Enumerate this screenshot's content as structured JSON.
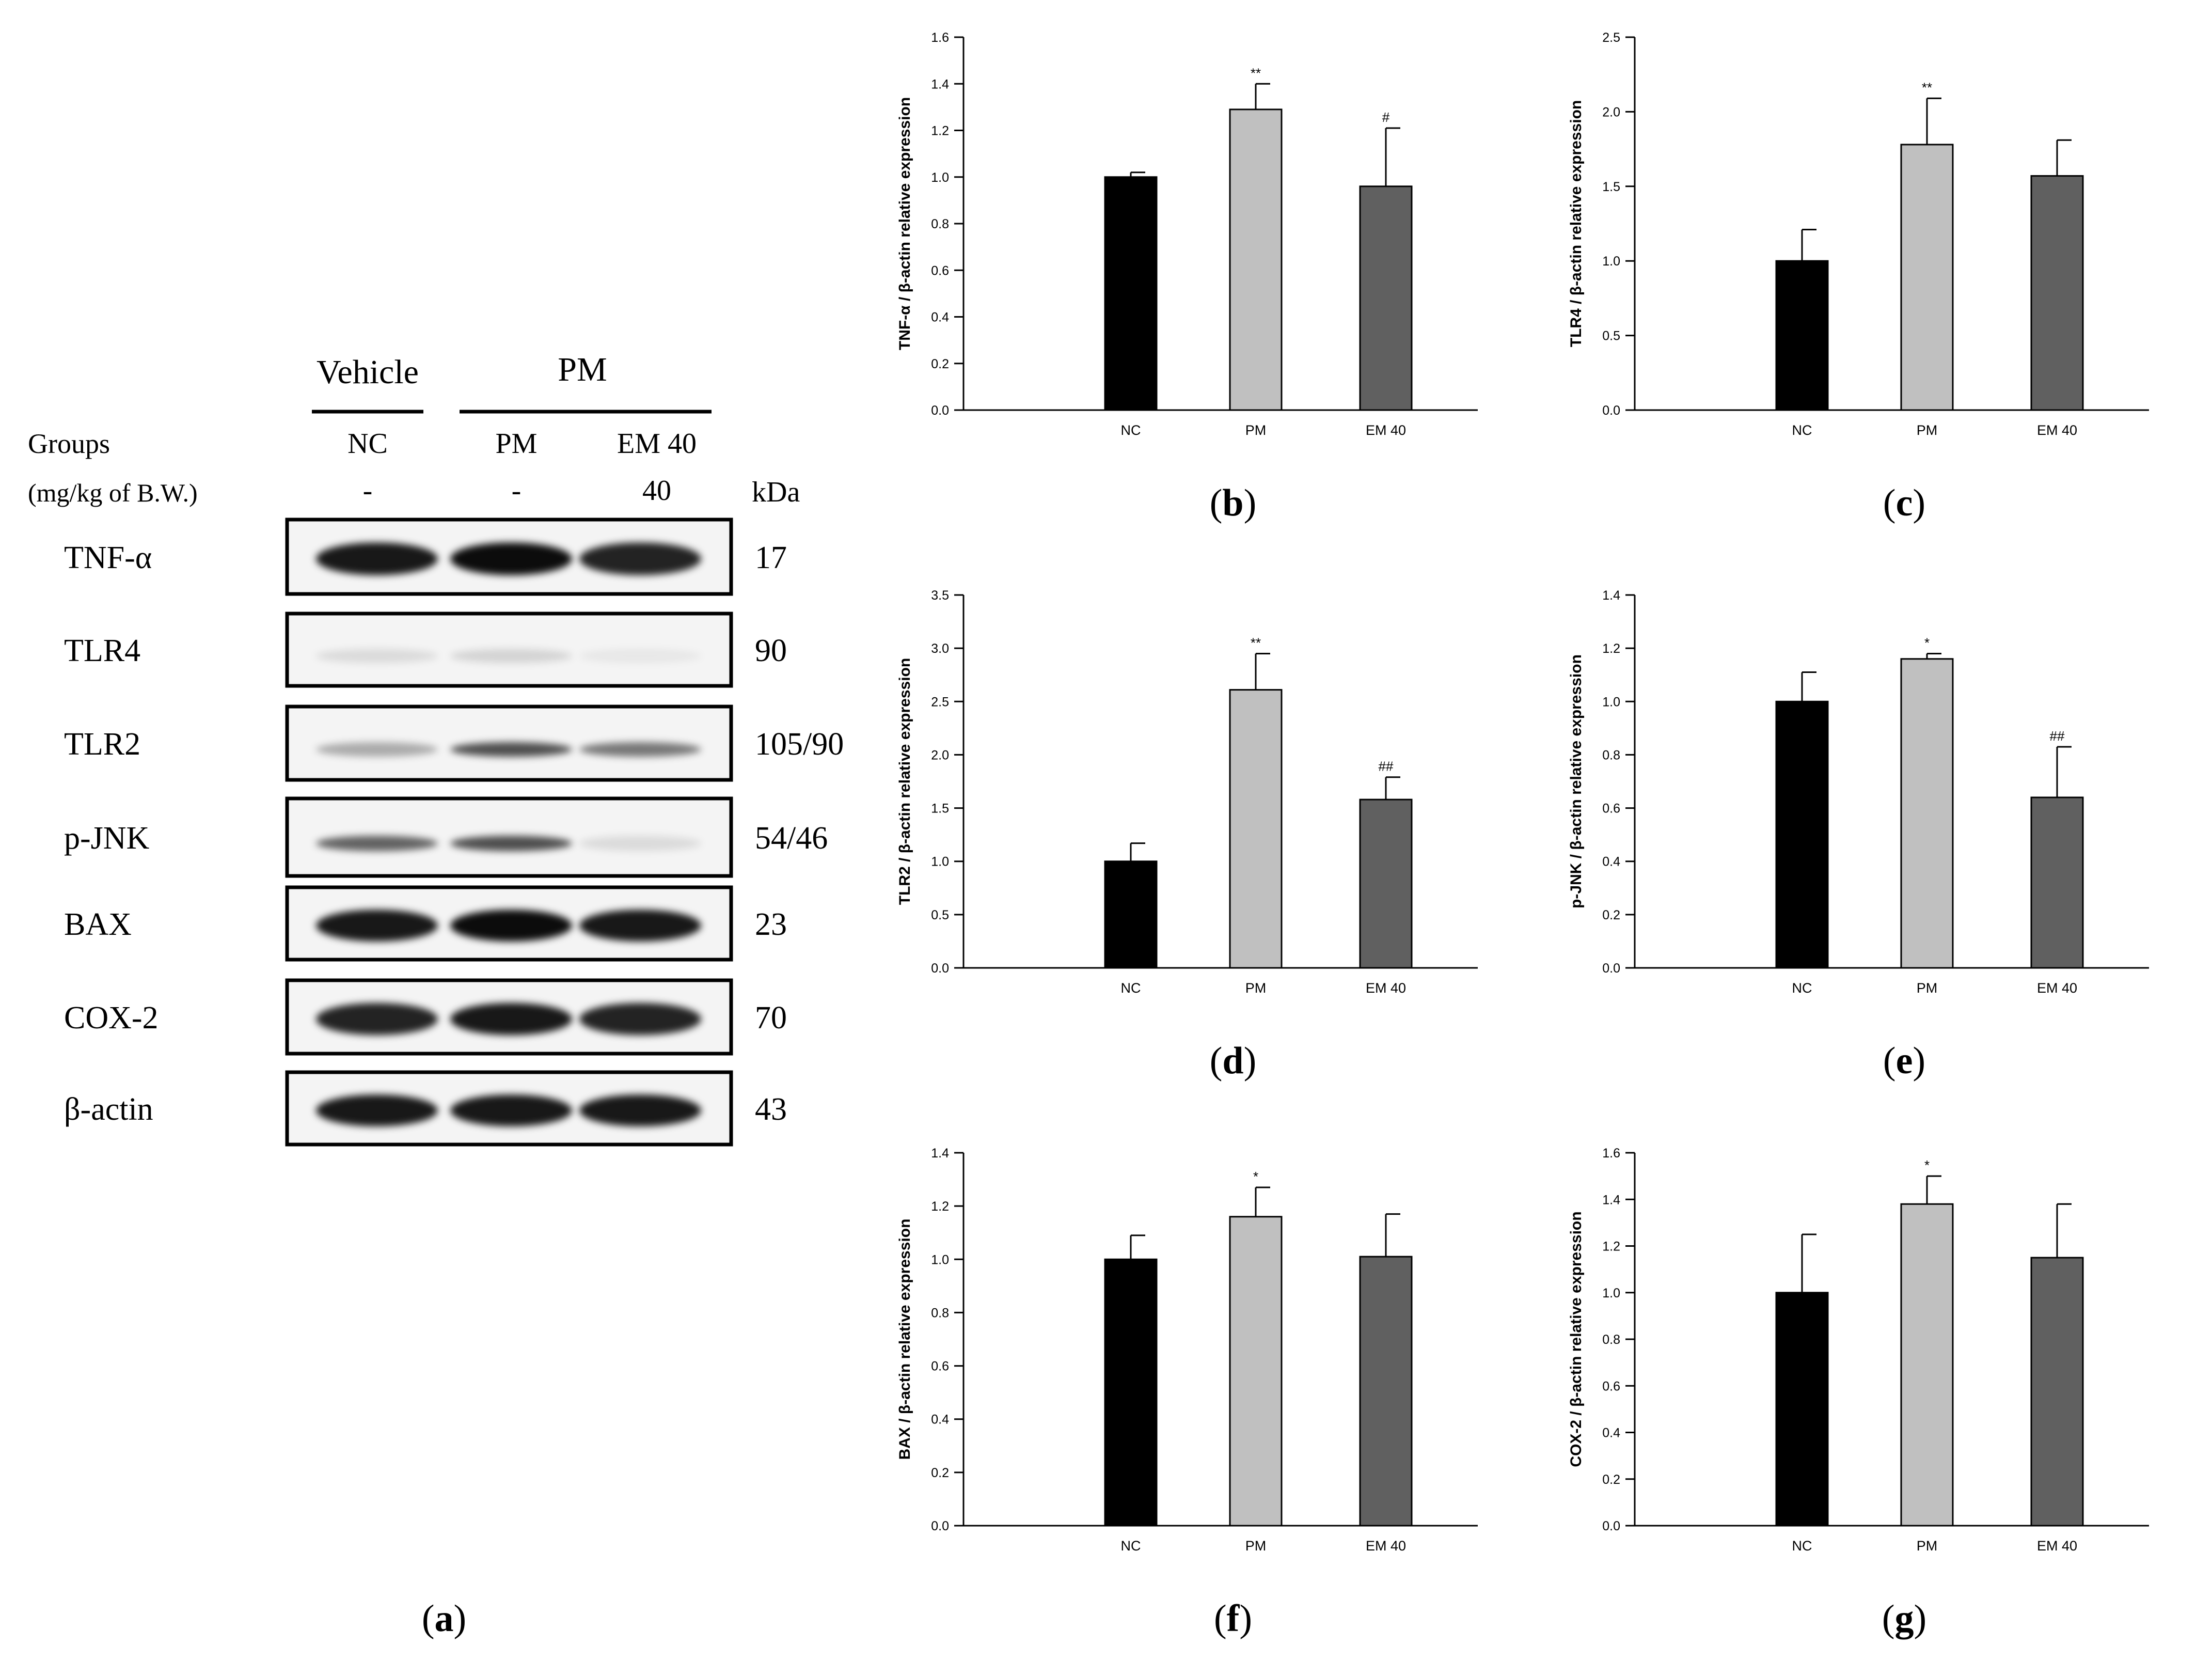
{
  "blot": {
    "group_headers": [
      {
        "text": "Vehicle",
        "x": 712
      },
      {
        "text": "PM",
        "x": 1128
      }
    ],
    "groups_label": "Groups",
    "dose_label": "(mg/kg of B.W.)",
    "kda_label": "kDa",
    "lanes": [
      "NC",
      "PM",
      "EM 40"
    ],
    "doses": [
      "-",
      "-",
      "40"
    ],
    "proteins": [
      {
        "name": "TNF-α",
        "kda": "17",
        "bands": [
          [
            1,
            0.95
          ],
          [
            1,
            1.0
          ],
          [
            1,
            0.9
          ]
        ]
      },
      {
        "name": "TLR4",
        "kda": "90",
        "bands": [
          [
            0,
            0.12
          ],
          [
            0,
            0.15
          ],
          [
            0,
            0.06
          ]
        ]
      },
      {
        "name": "TLR2",
        "kda": "105/90",
        "bands": [
          [
            0,
            0.35
          ],
          [
            0,
            0.8
          ],
          [
            0,
            0.6
          ]
        ]
      },
      {
        "name": "p-JNK",
        "kda": "54/46",
        "bands": [
          [
            0,
            0.7
          ],
          [
            0,
            0.8
          ],
          [
            0,
            0.12
          ]
        ]
      },
      {
        "name": "BAX",
        "kda": "23",
        "bands": [
          [
            1,
            0.95
          ],
          [
            1,
            1.0
          ],
          [
            1,
            0.95
          ]
        ]
      },
      {
        "name": "COX-2",
        "kda": "70",
        "bands": [
          [
            1,
            0.9
          ],
          [
            1,
            0.95
          ],
          [
            1,
            0.9
          ]
        ]
      },
      {
        "name": "β-actin",
        "kda": "43",
        "bands": [
          [
            1,
            0.95
          ],
          [
            1,
            0.95
          ],
          [
            1,
            0.95
          ]
        ]
      }
    ]
  },
  "panel_labels": [
    "a",
    "b",
    "c",
    "d",
    "e",
    "f",
    "g"
  ],
  "colors": {
    "NC": "#000000",
    "PM": "#c0c0c0",
    "EM 40": "#606060"
  },
  "chart_data": [
    {
      "type": "bar",
      "panel": "b",
      "categories": [
        "NC",
        "PM",
        "EM 40"
      ],
      "values": [
        1.0,
        1.29,
        0.96
      ],
      "errors": [
        0.02,
        0.11,
        0.25
      ],
      "annotations": [
        "",
        "**",
        "#"
      ],
      "ylabel": "TNF-α / β-actin relative expression",
      "ylim": [
        0,
        1.6
      ],
      "yticks": [
        "0.0",
        "0.2",
        "0.4",
        "0.6",
        "0.8",
        "1.0",
        "1.2",
        "1.4",
        "1.6"
      ]
    },
    {
      "type": "bar",
      "panel": "c",
      "categories": [
        "NC",
        "PM",
        "EM 40"
      ],
      "values": [
        1.0,
        1.78,
        1.57
      ],
      "errors": [
        0.21,
        0.31,
        0.24
      ],
      "annotations": [
        "",
        "**",
        ""
      ],
      "ylabel": "TLR4 / β-actin relative expression",
      "ylim": [
        0,
        2.5
      ],
      "yticks": [
        "0.0",
        "0.5",
        "1.0",
        "1.5",
        "2.0",
        "2.5"
      ]
    },
    {
      "type": "bar",
      "panel": "d",
      "categories": [
        "NC",
        "PM",
        "EM 40"
      ],
      "values": [
        1.0,
        2.61,
        1.58
      ],
      "errors": [
        0.17,
        0.34,
        0.21
      ],
      "annotations": [
        "",
        "**",
        "##"
      ],
      "ylabel": "TLR2 / β-actin relative expression",
      "ylim": [
        0,
        3.5
      ],
      "yticks": [
        "0.0",
        "0.5",
        "1.0",
        "1.5",
        "2.0",
        "2.5",
        "3.0",
        "3.5"
      ]
    },
    {
      "type": "bar",
      "panel": "e",
      "categories": [
        "NC",
        "PM",
        "EM 40"
      ],
      "values": [
        1.0,
        1.16,
        0.64
      ],
      "errors": [
        0.11,
        0.02,
        0.19
      ],
      "annotations": [
        "",
        "*",
        "##"
      ],
      "ylabel": "p-JNK / β-actin relative expression",
      "ylim": [
        0,
        1.4
      ],
      "yticks": [
        "0.0",
        "0.2",
        "0.4",
        "0.6",
        "0.8",
        "1.0",
        "1.2",
        "1.4"
      ]
    },
    {
      "type": "bar",
      "panel": "f",
      "categories": [
        "NC",
        "PM",
        "EM 40"
      ],
      "values": [
        1.0,
        1.16,
        1.01
      ],
      "errors": [
        0.09,
        0.11,
        0.16
      ],
      "annotations": [
        "",
        "*",
        ""
      ],
      "ylabel": "BAX / β-actin relative expression",
      "ylim": [
        0,
        1.4
      ],
      "yticks": [
        "0.0",
        "0.2",
        "0.4",
        "0.6",
        "0.8",
        "1.0",
        "1.2",
        "1.4"
      ]
    },
    {
      "type": "bar",
      "panel": "g",
      "categories": [
        "NC",
        "PM",
        "EM 40"
      ],
      "values": [
        1.0,
        1.38,
        1.15
      ],
      "errors": [
        0.25,
        0.12,
        0.23
      ],
      "annotations": [
        "",
        "*",
        ""
      ],
      "ylabel": "COX-2 / β-actin relative expression",
      "ylim": [
        0,
        1.6
      ],
      "yticks": [
        "0.0",
        "0.2",
        "0.4",
        "0.6",
        "0.8",
        "1.0",
        "1.2",
        "1.4",
        "1.6"
      ]
    }
  ]
}
